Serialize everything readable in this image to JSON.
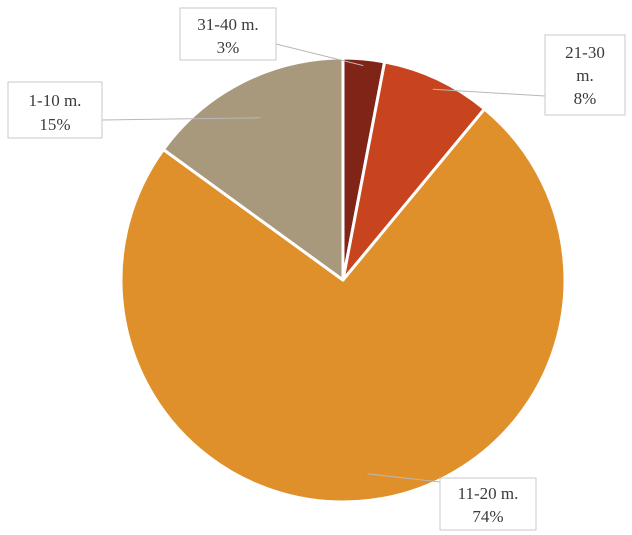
{
  "chart_data": {
    "type": "pie",
    "start_angle_deg": 0,
    "direction": "clockwise",
    "slices": [
      {
        "label_lines": [
          "31-40 m."
        ],
        "pct_label": "3%",
        "value": 3,
        "color": "#7f2417"
      },
      {
        "label_lines": [
          "21-30",
          "m."
        ],
        "pct_label": "8%",
        "value": 8,
        "color": "#c8441e"
      },
      {
        "label_lines": [
          "11-20 m."
        ],
        "pct_label": "74%",
        "value": 74,
        "color": "#e0902b"
      },
      {
        "label_lines": [
          "1-10 m."
        ],
        "pct_label": "15%",
        "value": 15,
        "color": "#a8997c"
      }
    ]
  }
}
